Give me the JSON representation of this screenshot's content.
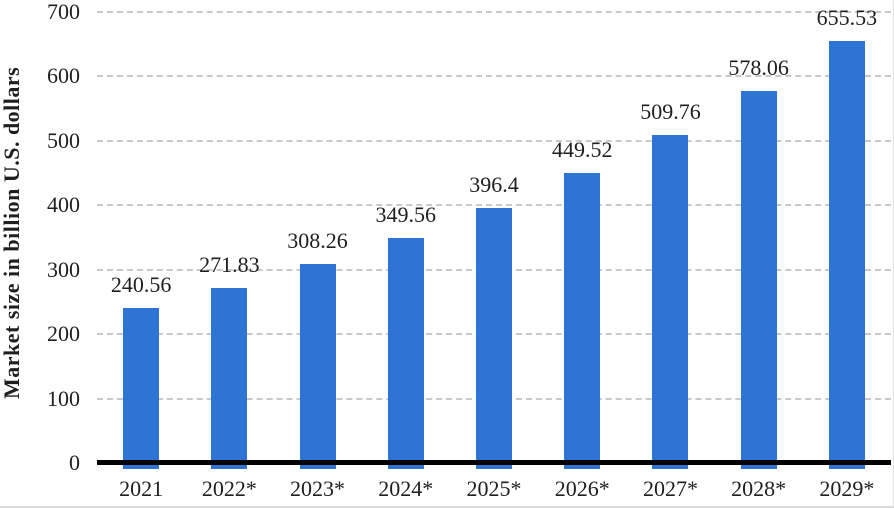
{
  "chart_data": {
    "type": "bar",
    "title": "",
    "xlabel": "",
    "ylabel": "Market size in billion U.S. dollars",
    "categories": [
      "2021",
      "2022*",
      "2023*",
      "2024*",
      "2025*",
      "2026*",
      "2027*",
      "2028*",
      "2029*"
    ],
    "values": [
      240.56,
      271.83,
      308.26,
      349.56,
      396.4,
      449.52,
      509.76,
      578.06,
      655.53
    ],
    "data_labels": [
      "240.56",
      "271.83",
      "308.26",
      "349.56",
      "396.4",
      "449.52",
      "509.76",
      "578.06",
      "655.53"
    ],
    "ylim": [
      0,
      700
    ],
    "ytick_step": 100,
    "ytick_labels": [
      "0",
      "100",
      "200",
      "300",
      "400",
      "500",
      "600",
      "700"
    ],
    "grid": "horizontal-dashed",
    "legend_position": "none"
  },
  "colors": {
    "bar": "#2e74d4",
    "grid": "#c9c9c9",
    "axis_line": "#000000",
    "text": "#1f1f1f",
    "background": "#ffffff",
    "frame_border": "#d9d9d9"
  }
}
